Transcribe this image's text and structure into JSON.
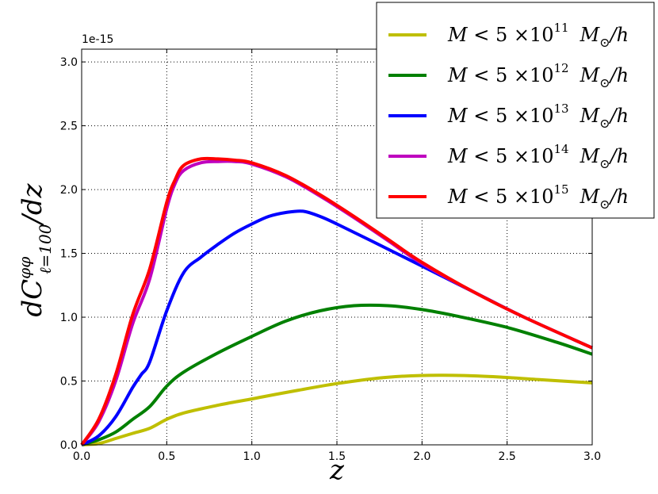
{
  "chart_data": {
    "type": "line",
    "offset_label": "1e-15",
    "xlabel": "z",
    "ylabel": "dC^{φφ}_{ℓ=100}/dz",
    "xlim": [
      0,
      3
    ],
    "ylim": [
      0,
      3.1
    ],
    "x_ticks": [
      0.0,
      0.5,
      1.0,
      1.5,
      2.0,
      2.5,
      3.0
    ],
    "x_tick_labels": [
      "0.0",
      "0.5",
      "1.0",
      "1.5",
      "2.0",
      "2.5",
      "3.0"
    ],
    "y_ticks": [
      0.0,
      0.5,
      1.0,
      1.5,
      2.0,
      2.5,
      3.0
    ],
    "y_tick_labels": [
      "0.0",
      "0.5",
      "1.0",
      "1.5",
      "2.0",
      "2.5",
      "3.0"
    ],
    "grid": true,
    "legend_position": "top-right",
    "series": [
      {
        "name": "M < 5×10^11 M⊙/h",
        "label_exp": "11",
        "color": "#bfbf00",
        "points": [
          [
            0,
            0
          ],
          [
            0.1,
            0.01
          ],
          [
            0.2,
            0.05
          ],
          [
            0.3,
            0.09
          ],
          [
            0.4,
            0.13
          ],
          [
            0.5,
            0.2
          ],
          [
            0.6,
            0.25
          ],
          [
            0.8,
            0.31
          ],
          [
            1.0,
            0.36
          ],
          [
            1.2,
            0.41
          ],
          [
            1.5,
            0.48
          ],
          [
            1.8,
            0.53
          ],
          [
            2.1,
            0.545
          ],
          [
            2.4,
            0.535
          ],
          [
            2.7,
            0.51
          ],
          [
            3.0,
            0.485
          ]
        ]
      },
      {
        "name": "M < 5×10^12 M⊙/h",
        "label_exp": "12",
        "color": "#008000",
        "points": [
          [
            0,
            0
          ],
          [
            0.1,
            0.04
          ],
          [
            0.2,
            0.1
          ],
          [
            0.3,
            0.2
          ],
          [
            0.4,
            0.3
          ],
          [
            0.5,
            0.46
          ],
          [
            0.6,
            0.57
          ],
          [
            0.8,
            0.72
          ],
          [
            1.0,
            0.85
          ],
          [
            1.2,
            0.97
          ],
          [
            1.4,
            1.05
          ],
          [
            1.6,
            1.09
          ],
          [
            1.8,
            1.09
          ],
          [
            2.0,
            1.06
          ],
          [
            2.2,
            1.01
          ],
          [
            2.5,
            0.92
          ],
          [
            2.8,
            0.8
          ],
          [
            3.0,
            0.71
          ]
        ]
      },
      {
        "name": "M < 5×10^13 M⊙/h",
        "label_exp": "13",
        "color": "#0000ff",
        "points": [
          [
            0,
            0
          ],
          [
            0.1,
            0.07
          ],
          [
            0.2,
            0.22
          ],
          [
            0.3,
            0.45
          ],
          [
            0.35,
            0.55
          ],
          [
            0.4,
            0.65
          ],
          [
            0.5,
            1.05
          ],
          [
            0.6,
            1.35
          ],
          [
            0.7,
            1.47
          ],
          [
            0.8,
            1.57
          ],
          [
            0.9,
            1.66
          ],
          [
            1.0,
            1.73
          ],
          [
            1.1,
            1.79
          ],
          [
            1.2,
            1.82
          ],
          [
            1.3,
            1.83
          ],
          [
            1.4,
            1.79
          ],
          [
            1.5,
            1.73
          ],
          [
            1.7,
            1.6
          ],
          [
            2.0,
            1.4
          ],
          [
            2.3,
            1.2
          ],
          [
            2.6,
            1.0
          ],
          [
            3.0,
            0.76
          ]
        ]
      },
      {
        "name": "M < 5×10^14 M⊙/h",
        "label_exp": "14",
        "color": "#bf00bf",
        "points": [
          [
            0,
            0
          ],
          [
            0.1,
            0.18
          ],
          [
            0.2,
            0.5
          ],
          [
            0.3,
            0.95
          ],
          [
            0.4,
            1.3
          ],
          [
            0.5,
            1.85
          ],
          [
            0.55,
            2.05
          ],
          [
            0.6,
            2.15
          ],
          [
            0.7,
            2.21
          ],
          [
            0.8,
            2.22
          ],
          [
            0.9,
            2.22
          ],
          [
            1.0,
            2.2
          ],
          [
            1.2,
            2.1
          ],
          [
            1.4,
            1.95
          ],
          [
            1.6,
            1.78
          ],
          [
            1.8,
            1.6
          ],
          [
            2.0,
            1.42
          ],
          [
            2.3,
            1.2
          ],
          [
            2.6,
            1.0
          ],
          [
            3.0,
            0.76
          ]
        ]
      },
      {
        "name": "M < 5×10^15 M⊙/h",
        "label_exp": "15",
        "color": "#ff0000",
        "points": [
          [
            0,
            0
          ],
          [
            0.1,
            0.2
          ],
          [
            0.2,
            0.55
          ],
          [
            0.3,
            1.02
          ],
          [
            0.4,
            1.38
          ],
          [
            0.5,
            1.9
          ],
          [
            0.55,
            2.08
          ],
          [
            0.6,
            2.19
          ],
          [
            0.7,
            2.24
          ],
          [
            0.8,
            2.24
          ],
          [
            0.9,
            2.23
          ],
          [
            1.0,
            2.21
          ],
          [
            1.2,
            2.11
          ],
          [
            1.4,
            1.96
          ],
          [
            1.6,
            1.79
          ],
          [
            1.8,
            1.61
          ],
          [
            2.0,
            1.43
          ],
          [
            2.3,
            1.2
          ],
          [
            2.6,
            1.0
          ],
          [
            3.0,
            0.76
          ]
        ]
      }
    ]
  }
}
